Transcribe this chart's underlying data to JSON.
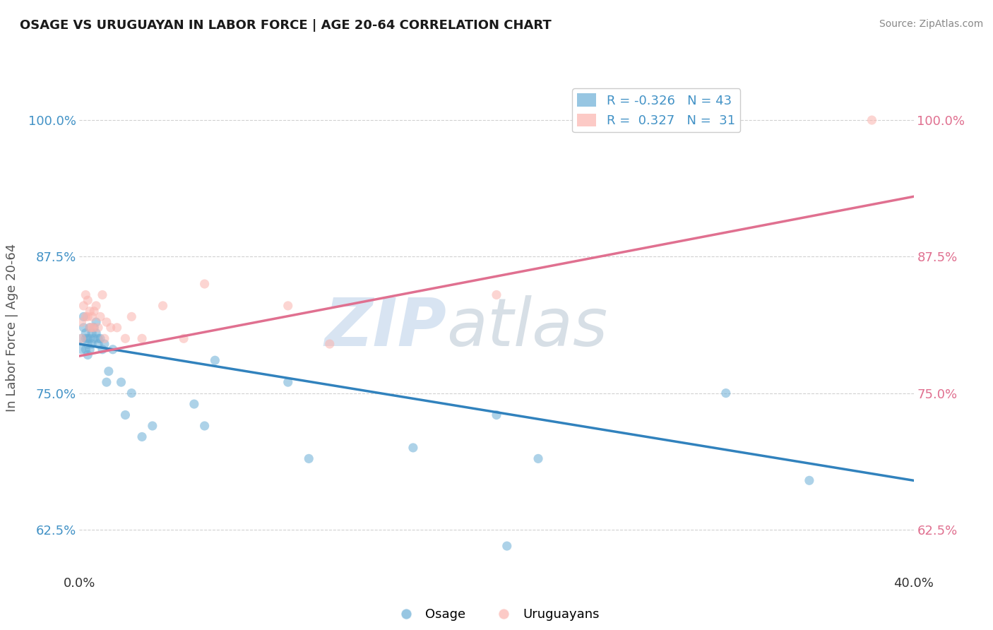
{
  "title": "OSAGE VS URUGUAYAN IN LABOR FORCE | AGE 20-64 CORRELATION CHART",
  "source": "Source: ZipAtlas.com",
  "ylabel": "In Labor Force | Age 20-64",
  "xlim": [
    0.0,
    0.4
  ],
  "ylim": [
    0.585,
    1.035
  ],
  "yticks": [
    0.625,
    0.75,
    0.875,
    1.0
  ],
  "ytick_labels": [
    "62.5%",
    "75.0%",
    "87.5%",
    "100.0%"
  ],
  "xticks": [
    0.0,
    0.4
  ],
  "xtick_labels": [
    "0.0%",
    "40.0%"
  ],
  "legend_r_items": [
    {
      "label": "R = -0.326   N = 43",
      "color": "#6baed6"
    },
    {
      "label": "R =  0.327   N =  31",
      "color": "#fbb4ae"
    }
  ],
  "osage_scatter": {
    "color": "#6baed6",
    "alpha": 0.55,
    "size": 90,
    "x": [
      0.001,
      0.001,
      0.002,
      0.002,
      0.003,
      0.003,
      0.003,
      0.004,
      0.004,
      0.004,
      0.005,
      0.005,
      0.005,
      0.006,
      0.006,
      0.007,
      0.007,
      0.008,
      0.008,
      0.009,
      0.009,
      0.01,
      0.011,
      0.012,
      0.013,
      0.014,
      0.016,
      0.02,
      0.022,
      0.025,
      0.03,
      0.035,
      0.055,
      0.06,
      0.065,
      0.1,
      0.11,
      0.16,
      0.2,
      0.205,
      0.22,
      0.31,
      0.35
    ],
    "y": [
      0.8,
      0.79,
      0.82,
      0.81,
      0.805,
      0.8,
      0.79,
      0.8,
      0.795,
      0.785,
      0.81,
      0.8,
      0.79,
      0.805,
      0.795,
      0.81,
      0.8,
      0.815,
      0.805,
      0.8,
      0.795,
      0.8,
      0.79,
      0.795,
      0.76,
      0.77,
      0.79,
      0.76,
      0.73,
      0.75,
      0.71,
      0.72,
      0.74,
      0.72,
      0.78,
      0.76,
      0.69,
      0.7,
      0.73,
      0.61,
      0.69,
      0.75,
      0.67
    ]
  },
  "uruguayan_scatter": {
    "color": "#fbb4ae",
    "alpha": 0.55,
    "size": 90,
    "x": [
      0.001,
      0.001,
      0.002,
      0.003,
      0.003,
      0.004,
      0.004,
      0.005,
      0.005,
      0.006,
      0.006,
      0.007,
      0.007,
      0.008,
      0.009,
      0.01,
      0.011,
      0.012,
      0.013,
      0.015,
      0.018,
      0.022,
      0.025,
      0.03,
      0.04,
      0.05,
      0.06,
      0.1,
      0.12,
      0.2,
      0.38
    ],
    "y": [
      0.815,
      0.8,
      0.83,
      0.84,
      0.82,
      0.835,
      0.82,
      0.825,
      0.81,
      0.82,
      0.81,
      0.825,
      0.81,
      0.83,
      0.81,
      0.82,
      0.84,
      0.8,
      0.815,
      0.81,
      0.81,
      0.8,
      0.82,
      0.8,
      0.83,
      0.8,
      0.85,
      0.83,
      0.795,
      0.84,
      1.0
    ]
  },
  "osage_trendline": {
    "color": "#3182bd",
    "x": [
      0.0,
      0.4
    ],
    "y": [
      0.795,
      0.67
    ]
  },
  "uruguayan_trendline": {
    "color": "#e07090",
    "x": [
      0.0,
      0.4
    ],
    "y": [
      0.784,
      0.93
    ]
  },
  "watermark_zip": "ZIP",
  "watermark_atlas": "atlas",
  "background_color": "#ffffff",
  "grid_color": "#cccccc",
  "title_color": "#1a1a1a",
  "axis_label_color": "#555555",
  "left_tick_color": "#4292c6",
  "right_tick_color": "#e07090"
}
